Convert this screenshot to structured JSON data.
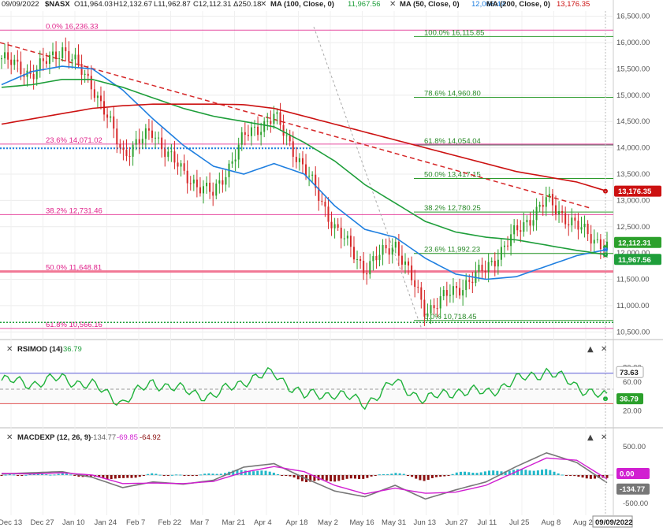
{
  "header": {
    "date": "09/09/2022",
    "symbol": "$NASX",
    "open": "O11,964.03",
    "high": "H12,132.67",
    "low": "L11,962.87",
    "close": "C12,112.31",
    "change": "Δ250.18",
    "ma100_label": "MA (100, Close, 0)",
    "ma100_value": "11,967.56",
    "ma50_label": "MA (50, Close, 0)",
    "ma50_value": "12,066.49",
    "ma200_label": "MA (200, Close, 0)",
    "ma200_value": "13,176.35"
  },
  "colors": {
    "up": "#2ca02c",
    "down": "#d62728",
    "ma50": "#1f7fe0",
    "ma100": "#1e9e3a",
    "ma200": "#cc1111",
    "fib": "#e0218a",
    "rsi": "#1fb23a",
    "macd_line": "#777777",
    "signal_line": "#d11fd1",
    "hist_pos": "#22b7c8",
    "hist_neg": "#8b1010"
  },
  "price_panel": {
    "yaxis_ticks": [
      "16,500.00",
      "16,000.00",
      "15,500.00",
      "15,000.00",
      "14,500.00",
      "14,000.00",
      "13,500.00",
      "13,000.00",
      "12,500.00",
      "12,000.00",
      "11,500.00",
      "11,000.00",
      "10,500.00"
    ],
    "ymin": 10400,
    "ymax": 16600,
    "fib_left": [
      {
        "label": "0.0% 16,236.33",
        "value": 16236
      },
      {
        "label": "23.6% 14,071.02",
        "value": 14071
      },
      {
        "label": "38.2% 12,731.46",
        "value": 12731
      },
      {
        "label": "50.0% 11,648.81",
        "value": 11649
      },
      {
        "label": "61.8% 10,566.16",
        "value": 10566
      }
    ],
    "fib_right": [
      {
        "label": "100.0% 16,115.85",
        "value": 16116
      },
      {
        "label": "78.6% 14,960.80",
        "value": 14961
      },
      {
        "label": "61.8% 14,054.04",
        "value": 14054
      },
      {
        "label": "50.0% 13,417.15",
        "value": 13417
      },
      {
        "label": "38.2% 12,780.25",
        "value": 12780
      },
      {
        "label": "23.6% 11,992.23",
        "value": 11992
      },
      {
        "label": "0.0% 10,718.45",
        "value": 10718
      }
    ],
    "price_tags": [
      {
        "label": "13,176.35",
        "color": "#cc1111"
      },
      {
        "label": "12,112.31",
        "color": "#2ca02c"
      },
      {
        "label": "11,967.56",
        "color": "#1e9e3a"
      }
    ]
  },
  "rsi_panel": {
    "title": "RSIMOD (14)",
    "value": "36.79",
    "yaxis_ticks": [
      "80.00",
      "60.00",
      "40.00",
      "20.00"
    ],
    "tags": [
      {
        "label": "73.63",
        "color": "#ffffff",
        "text": "#222"
      },
      {
        "label": "36.79",
        "color": "#2ca02c",
        "text": "#fff"
      }
    ]
  },
  "macd_panel": {
    "title": "MACDEXP (12, 26, 9)",
    "v1": "-134.77",
    "v2": "-69.85",
    "v3": "-64.92",
    "yaxis_ticks": [
      "500.00",
      "0.00",
      "-500.00"
    ],
    "tags": [
      {
        "label": "0.00",
        "color": "#d11fd1",
        "text": "#fff"
      },
      {
        "label": "-134.77",
        "color": "#777777",
        "text": "#fff"
      }
    ]
  },
  "xaxis": {
    "labels": [
      "Dec 13",
      "Dec 27",
      "Jan 10",
      "Jan 24",
      "Feb 7",
      "Feb 22",
      "Mar 7",
      "Mar 21",
      "Apr 4",
      "Apr 18",
      "May 2",
      "May 16",
      "May 31",
      "Jun 13",
      "Jun 27",
      "Jul 11",
      "Jul 25",
      "Aug 8",
      "Aug 22"
    ],
    "current_date": "09/09/2022"
  },
  "chart_data": {
    "type": "line",
    "x_dates": [
      "2021-12-10",
      "2021-12-20",
      "2021-12-31",
      "2022-01-10",
      "2022-01-24",
      "2022-02-07",
      "2022-02-22",
      "2022-03-07",
      "2022-03-21",
      "2022-04-04",
      "2022-04-18",
      "2022-05-02",
      "2022-05-16",
      "2022-05-31",
      "2022-06-13",
      "2022-06-27",
      "2022-07-11",
      "2022-07-25",
      "2022-08-08",
      "2022-08-22",
      "2022-09-09"
    ],
    "series": [
      {
        "name": "$NASX",
        "values": [
          15700,
          15400,
          15900,
          15200,
          13900,
          14300,
          13500,
          13100,
          14200,
          14600,
          13600,
          12500,
          11700,
          12200,
          10900,
          11300,
          11700,
          12400,
          13000,
          12500,
          12112
        ]
      },
      {
        "name": "MA (50, Close, 0)",
        "values": [
          15200,
          15450,
          15550,
          15500,
          15100,
          14550,
          14050,
          13650,
          13500,
          13700,
          13500,
          12900,
          12450,
          12300,
          11900,
          11600,
          11500,
          11550,
          11750,
          11950,
          12066
        ]
      },
      {
        "name": "MA (100, Close, 0)",
        "values": [
          15150,
          15200,
          15300,
          15300,
          15150,
          14950,
          14750,
          14600,
          14500,
          14400,
          14100,
          13750,
          13300,
          12950,
          12600,
          12400,
          12300,
          12250,
          12150,
          12050,
          11968
        ]
      },
      {
        "name": "MA (200, Close, 0)",
        "values": [
          14450,
          14550,
          14650,
          14750,
          14800,
          14830,
          14830,
          14830,
          14820,
          14750,
          14600,
          14450,
          14300,
          14150,
          14000,
          13850,
          13700,
          13550,
          13450,
          13350,
          13176
        ]
      }
    ],
    "ylim": [
      10400,
      16600
    ],
    "grid": true,
    "rsi": {
      "name": "RSIMOD (14)",
      "values": [
        62,
        58,
        65,
        55,
        32,
        60,
        48,
        40,
        62,
        72,
        40,
        45,
        30,
        60,
        35,
        48,
        45,
        62,
        75,
        55,
        36.79
      ],
      "ylim": [
        0,
        100
      ]
    },
    "macd": {
      "name": "MACDEXP (12, 26, 9)",
      "values": [
        20,
        40,
        60,
        -40,
        -220,
        -120,
        -160,
        -90,
        140,
        200,
        -50,
        -280,
        -380,
        -180,
        -420,
        -260,
        -120,
        150,
        390,
        220,
        -134.77
      ],
      "signal": [
        30,
        20,
        40,
        0,
        -150,
        -140,
        -150,
        -110,
        50,
        150,
        60,
        -180,
        -330,
        -230,
        -320,
        -300,
        -180,
        60,
        300,
        260,
        -69.85
      ],
      "hist": [
        -10,
        20,
        20,
        -40,
        -70,
        20,
        -10,
        20,
        90,
        50,
        -110,
        -100,
        -50,
        50,
        -100,
        40,
        60,
        90,
        90,
        -40,
        -64.92
      ],
      "ylim": [
        -650,
        650
      ]
    }
  }
}
